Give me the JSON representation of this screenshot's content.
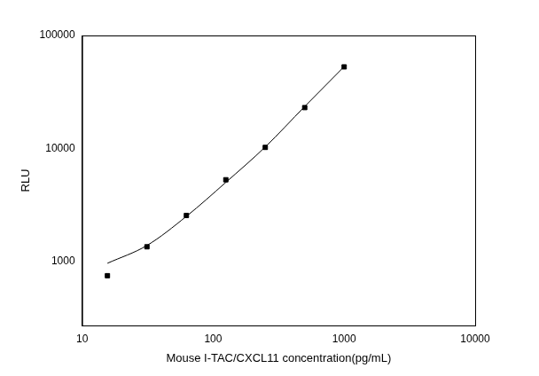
{
  "chart_data": {
    "type": "scatter",
    "x_label": "Mouse I-TAC/CXCL11 concentration(pg/mL)",
    "y_label": "RLU",
    "log": true,
    "grid": false,
    "xlim": [
      10,
      10000
    ],
    "xticks": [
      10,
      100,
      1000,
      10000
    ],
    "ylim": [
      270,
      100000
    ],
    "yticks": [
      1000,
      10000,
      100000
    ],
    "series": [
      {
        "type": "scatter",
        "marker": "square",
        "color": "#000000",
        "x": [
          15.6,
          31.25,
          62.5,
          125,
          250,
          500,
          1000
        ],
        "values": [
          745,
          1343,
          2546,
          5270,
          10200,
          22960,
          52700
        ]
      },
      {
        "type": "line",
        "line_style": "solid",
        "color": "#000000",
        "x": [
          15.6,
          31.25,
          62.5,
          125,
          250,
          500,
          1000
        ],
        "values": [
          960,
          1380,
          2500,
          5000,
          10300,
          23500,
          53000
        ]
      }
    ]
  }
}
